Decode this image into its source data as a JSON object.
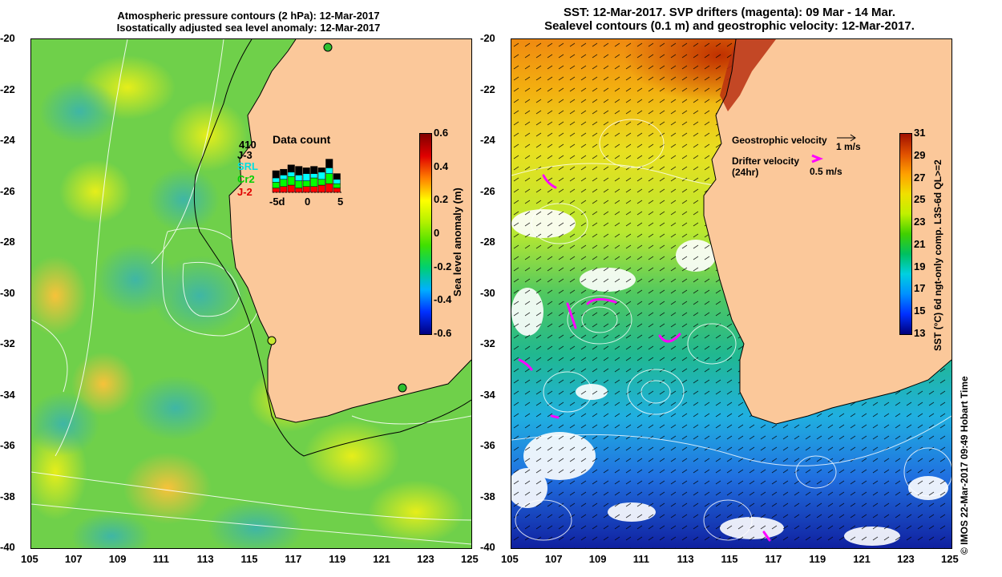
{
  "left": {
    "title_line1": "Atmospheric pressure contours (2 hPa): 12-Mar-2017",
    "title_line2": "Isostatically adjusted sea level anomaly: 12-Mar-2017",
    "colorbar_label": "Sea level anomaly (m)",
    "colorbar_ticks": [
      "0.6",
      "0.4",
      "0.2",
      "0",
      "-0.2",
      "-0.4",
      "-0.6"
    ],
    "colorbar_colors": [
      "#000080",
      "#0030ff",
      "#00b0ff",
      "#00d070",
      "#40e000",
      "#b0f000",
      "#ffff00",
      "#ff8000",
      "#e00000",
      "#800000"
    ],
    "inset": {
      "title": "Data count",
      "count": "410",
      "missions": [
        "J-3",
        "SRL",
        "Cr2",
        "J-2"
      ],
      "mission_colors": [
        "#000000",
        "#00ffff",
        "#00ff00",
        "#ff0000"
      ],
      "x_ticks": [
        "-5d",
        "0",
        "5"
      ]
    }
  },
  "right": {
    "title_line1": "SST: 12-Mar-2017. SVP drifters (magenta): 09 Mar - 14 Mar.",
    "title_line2": "Sealevel contours (0.1 m) and geostrophic velocity: 12-Mar-2017.",
    "legend_geo": "Geostrophic velocity",
    "legend_geo_scale": "1 m/s",
    "legend_drifter": "Drifter velocity",
    "legend_drifter_sub": "(24hr)",
    "legend_drifter_scale": "0.5 m/s",
    "colorbar_label": "SST (°C) 6d ngt-only comp. L3S-6d QL>=2",
    "colorbar_ticks": [
      "31",
      "29",
      "27",
      "25",
      "23",
      "21",
      "19",
      "17",
      "15",
      "13"
    ],
    "colorbar_colors": [
      "#00007a",
      "#0030ff",
      "#0090ff",
      "#00d0e0",
      "#00c060",
      "#40d000",
      "#c0f000",
      "#f0e000",
      "#ffa000",
      "#e05000",
      "#a01000"
    ],
    "credit": "© IMOS 22-Mar-2017 09:49 Hobart Time"
  },
  "axes": {
    "y_ticks": [
      "-20",
      "-22",
      "-24",
      "-26",
      "-28",
      "-30",
      "-32",
      "-34",
      "-36",
      "-38",
      "-40"
    ],
    "x_ticks": [
      "105",
      "107",
      "109",
      "111",
      "113",
      "115",
      "117",
      "119",
      "121",
      "123",
      "125"
    ]
  },
  "colors": {
    "land": "#fbc89a",
    "coast": "#000000"
  }
}
